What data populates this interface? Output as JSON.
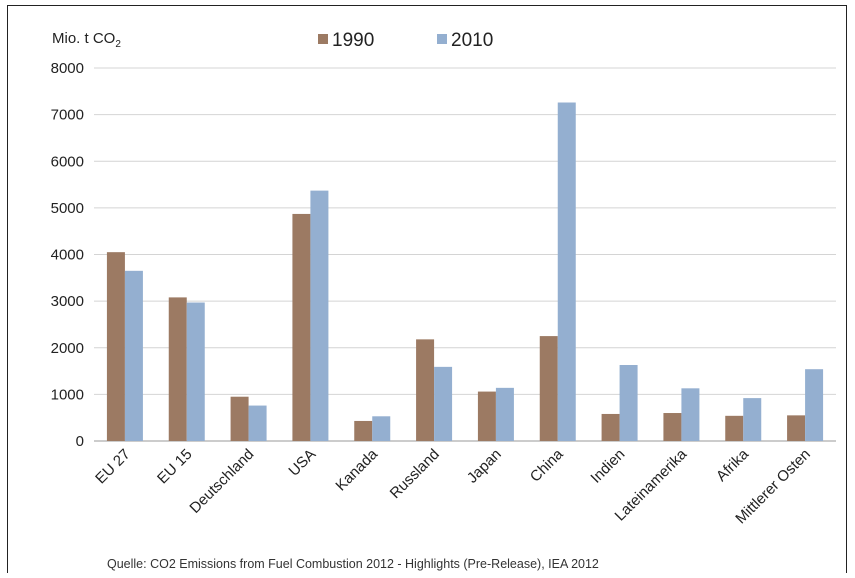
{
  "chart_data": {
    "type": "bar",
    "unit_label": {
      "main": "Mio. t CO",
      "sub": "2"
    },
    "source": "Quelle: CO2 Emissions from Fuel Combustion 2012 - Highlights (Pre-Release), IEA 2012",
    "categories": [
      "EU 27",
      "EU 15",
      "Deutschland",
      "USA",
      "Kanada",
      "Russland",
      "Japan",
      "China",
      "Indien",
      "Lateinamerika",
      "Afrika",
      "Mittlerer Osten"
    ],
    "series": [
      {
        "name": "1990",
        "color": "#9c7a63",
        "values": [
          4050,
          3080,
          950,
          4870,
          430,
          2180,
          1060,
          2250,
          580,
          600,
          540,
          550
        ]
      },
      {
        "name": "2010",
        "color": "#94afd0",
        "values": [
          3650,
          2970,
          760,
          5370,
          530,
          1590,
          1140,
          7260,
          1630,
          1130,
          920,
          1540
        ]
      }
    ],
    "yticks": [
      "0",
      "1000",
      "2000",
      "3000",
      "4000",
      "5000",
      "6000",
      "7000",
      "8000"
    ],
    "ylim": [
      0,
      8000
    ],
    "grid": true,
    "legend_position": "top"
  }
}
